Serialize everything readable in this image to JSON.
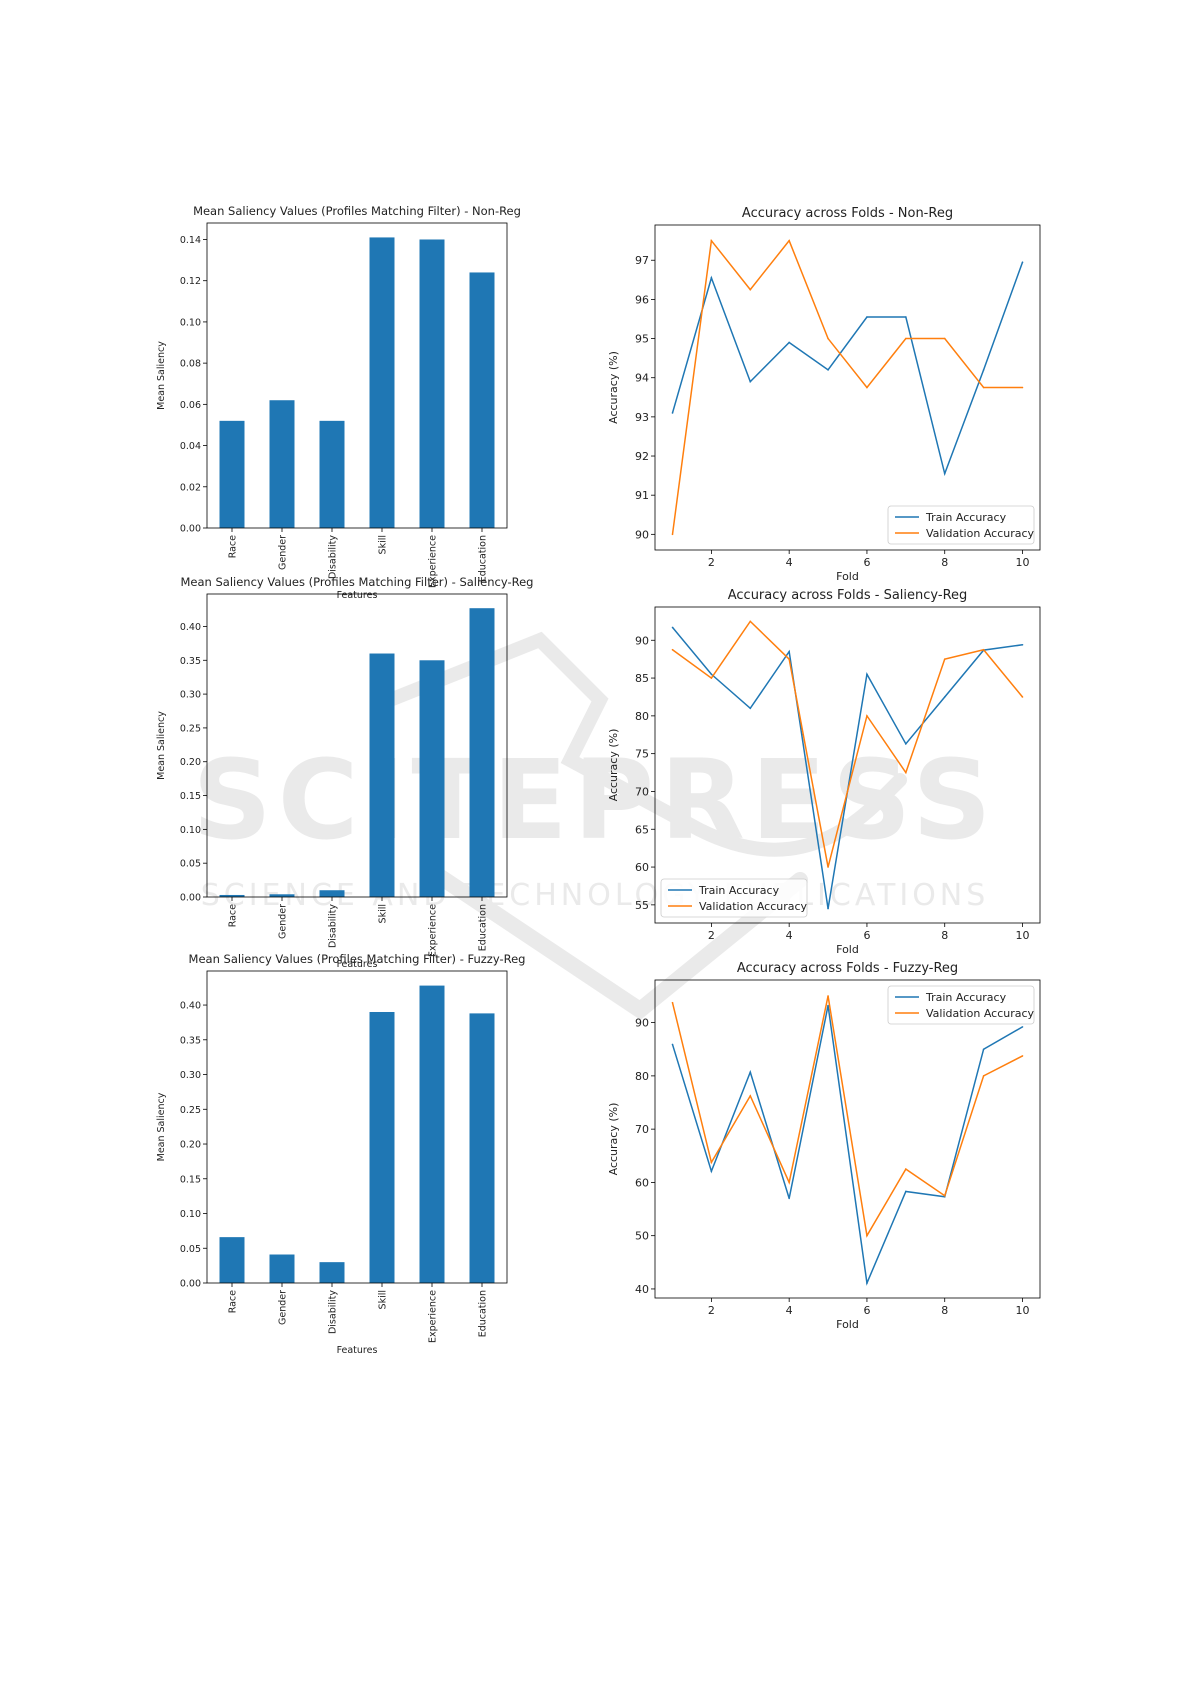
{
  "watermark": {
    "main": "SCITEPRESS",
    "sub": "SCIENCE AND TECHNOLOGY PUBLICATIONS",
    "color": "#d9d9d9"
  },
  "colors": {
    "bar": "#1f77b4",
    "train": "#1f77b4",
    "validation": "#ff7f0e"
  },
  "chart_data": [
    {
      "type": "bar",
      "title": "Mean Saliency Values (Profiles Matching Filter) - Non-Reg",
      "xlabel": "Features",
      "ylabel": "Mean Saliency",
      "categories": [
        "Race",
        "Gender",
        "Disability",
        "Skill",
        "Experience",
        "Education"
      ],
      "values": [
        0.052,
        0.062,
        0.052,
        0.141,
        0.14,
        0.124
      ],
      "ylim": [
        0,
        0.148
      ],
      "yticks": [
        0.0,
        0.02,
        0.04,
        0.06,
        0.08,
        0.1,
        0.12,
        0.14
      ],
      "ytick_labels": [
        "0.00",
        "0.02",
        "0.04",
        "0.06",
        "0.08",
        "0.10",
        "0.12",
        "0.14"
      ],
      "grid": false
    },
    {
      "type": "line",
      "title": "Accuracy across Folds - Non-Reg",
      "xlabel": "Fold",
      "ylabel": "Accuracy (%)",
      "x": [
        1,
        2,
        3,
        4,
        5,
        6,
        7,
        8,
        9,
        10
      ],
      "series": [
        {
          "name": "Train Accuracy",
          "values": [
            93.1,
            96.55,
            93.9,
            94.9,
            94.2,
            95.55,
            95.55,
            91.55,
            94.2,
            96.95
          ]
        },
        {
          "name": "Validation Accuracy",
          "values": [
            90.0,
            97.5,
            96.25,
            97.5,
            95.0,
            93.75,
            95.0,
            95.0,
            93.75,
            93.75
          ]
        }
      ],
      "xlim": [
        0.55,
        10.45
      ],
      "ylim": [
        89.6,
        97.9
      ],
      "xticks": [
        2,
        4,
        6,
        8,
        10
      ],
      "yticks": [
        90,
        91,
        92,
        93,
        94,
        95,
        96,
        97
      ],
      "legend": "lower-right",
      "grid": false
    },
    {
      "type": "bar",
      "title": "Mean Saliency Values (Profiles Matching Filter) - Saliency-Reg",
      "xlabel": "Features",
      "ylabel": "Mean Saliency",
      "categories": [
        "Race",
        "Gender",
        "Disability",
        "Skill",
        "Experience",
        "Education"
      ],
      "values": [
        0.003,
        0.004,
        0.01,
        0.36,
        0.35,
        0.427
      ],
      "ylim": [
        0,
        0.448
      ],
      "yticks": [
        0.0,
        0.05,
        0.1,
        0.15,
        0.2,
        0.25,
        0.3,
        0.35,
        0.4
      ],
      "ytick_labels": [
        "0.00",
        "0.05",
        "0.10",
        "0.15",
        "0.20",
        "0.25",
        "0.30",
        "0.35",
        "0.40"
      ],
      "grid": false
    },
    {
      "type": "line",
      "title": "Accuracy across Folds - Saliency-Reg",
      "xlabel": "Fold",
      "ylabel": "Accuracy (%)",
      "x": [
        1,
        2,
        3,
        4,
        5,
        6,
        7,
        8,
        9,
        10
      ],
      "series": [
        {
          "name": "Train Accuracy",
          "values": [
            91.7,
            85.5,
            81.0,
            88.5,
            54.5,
            85.5,
            76.3,
            82.5,
            88.7,
            89.4
          ]
        },
        {
          "name": "Validation Accuracy",
          "values": [
            88.75,
            85.0,
            92.5,
            87.5,
            60.0,
            80.0,
            72.5,
            87.5,
            88.75,
            82.5
          ]
        }
      ],
      "xlim": [
        0.55,
        10.45
      ],
      "ylim": [
        52.6,
        94.4
      ],
      "xticks": [
        2,
        4,
        6,
        8,
        10
      ],
      "yticks": [
        55,
        60,
        65,
        70,
        75,
        80,
        85,
        90
      ],
      "legend": "lower-left",
      "grid": false
    },
    {
      "type": "bar",
      "title": "Mean Saliency Values (Profiles Matching Filter) - Fuzzy-Reg",
      "xlabel": "Features",
      "ylabel": "Mean Saliency",
      "categories": [
        "Race",
        "Gender",
        "Disability",
        "Skill",
        "Experience",
        "Education"
      ],
      "values": [
        0.066,
        0.041,
        0.03,
        0.39,
        0.428,
        0.388
      ],
      "ylim": [
        0,
        0.449
      ],
      "yticks": [
        0.0,
        0.05,
        0.1,
        0.15,
        0.2,
        0.25,
        0.3,
        0.35,
        0.4
      ],
      "ytick_labels": [
        "0.00",
        "0.05",
        "0.10",
        "0.15",
        "0.20",
        "0.25",
        "0.30",
        "0.35",
        "0.40"
      ],
      "grid": false
    },
    {
      "type": "line",
      "title": "Accuracy across Folds - Fuzzy-Reg",
      "xlabel": "Fold",
      "ylabel": "Accuracy (%)",
      "x": [
        1,
        2,
        3,
        4,
        5,
        6,
        7,
        8,
        9,
        10
      ],
      "series": [
        {
          "name": "Train Accuracy",
          "values": [
            85.9,
            62.1,
            80.7,
            57.0,
            93.2,
            41.1,
            58.3,
            57.3,
            85.0,
            89.2
          ]
        },
        {
          "name": "Validation Accuracy",
          "values": [
            93.75,
            63.75,
            76.25,
            60.0,
            95.0,
            50.0,
            62.5,
            57.5,
            80.0,
            83.75
          ]
        }
      ],
      "xlim": [
        0.55,
        10.45
      ],
      "ylim": [
        38.3,
        98.0
      ],
      "xticks": [
        2,
        4,
        6,
        8,
        10
      ],
      "yticks": [
        40,
        50,
        60,
        70,
        80,
        90
      ],
      "legend": "upper-right",
      "grid": false
    }
  ]
}
